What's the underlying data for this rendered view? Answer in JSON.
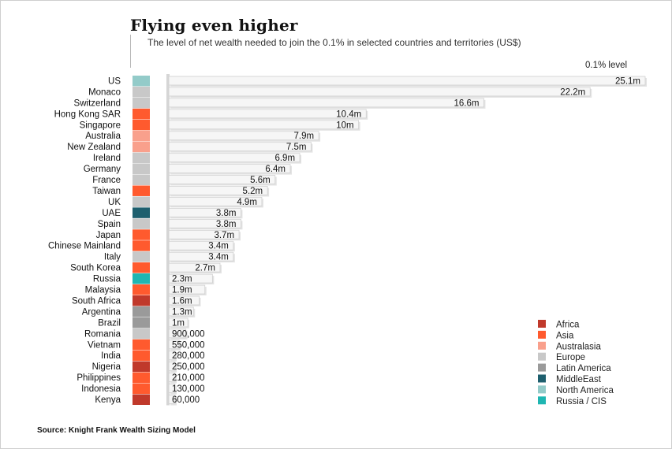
{
  "chart_data": {
    "type": "bar",
    "title": "Flying even higher",
    "subtitle": "The level of net wealth needed to join the 0.1% in selected countries and territories (US$)",
    "value_header": "0.1% level",
    "source": "Source: Knight Frank Wealth Sizing Model",
    "categories": [
      "US",
      "Monaco",
      "Switzerland",
      "Hong Kong SAR",
      "Singapore",
      "Australia",
      "New Zealand",
      "Ireland",
      "Germany",
      "France",
      "Taiwan",
      "UK",
      "UAE",
      "Spain",
      "Japan",
      "Chinese Mainland",
      "Italy",
      "South Korea",
      "Russia",
      "Malaysia",
      "South Africa",
      "Argentina",
      "Brazil",
      "Romania",
      "Vietnam",
      "India",
      "Nigeria",
      "Philippines",
      "Indonesia",
      "Kenya"
    ],
    "values": [
      25100000,
      22200000,
      16600000,
      10400000,
      10000000,
      7900000,
      7500000,
      6900000,
      6400000,
      5600000,
      5200000,
      4900000,
      3800000,
      3800000,
      3700000,
      3400000,
      3400000,
      2700000,
      2300000,
      1900000,
      1600000,
      1300000,
      1000000,
      900000,
      550000,
      280000,
      250000,
      210000,
      130000,
      60000
    ],
    "value_labels": [
      "25.1m",
      "22.2m",
      "16.6m",
      "10.4m",
      "10m",
      "7.9m",
      "7.5m",
      "6.9m",
      "6.4m",
      "5.6m",
      "5.2m",
      "4.9m",
      "3.8m",
      "3.8m",
      "3.7m",
      "3.4m",
      "3.4m",
      "2.7m",
      "2.3m",
      "1.9m",
      "1.6m",
      "1.3m",
      "1m",
      "900,000",
      "550,000",
      "280,000",
      "250,000",
      "210,000",
      "130,000",
      "60,000"
    ],
    "regions": [
      "North America",
      "Europe",
      "Europe",
      "Asia",
      "Asia",
      "Australasia",
      "Australasia",
      "Europe",
      "Europe",
      "Europe",
      "Asia",
      "Europe",
      "MiddleEast",
      "Europe",
      "Asia",
      "Asia",
      "Europe",
      "Asia",
      "Russia / CIS",
      "Asia",
      "Africa",
      "Latin America",
      "Latin America",
      "Europe",
      "Asia",
      "Asia",
      "Africa",
      "Asia",
      "Asia",
      "Africa"
    ],
    "legend": [
      {
        "name": "Africa",
        "color": "#c0392b"
      },
      {
        "name": "Asia",
        "color": "#ff5a2e"
      },
      {
        "name": "Australasia",
        "color": "#f9a08c"
      },
      {
        "name": "Europe",
        "color": "#c8c8c8"
      },
      {
        "name": "Latin America",
        "color": "#9a9a9a"
      },
      {
        "name": "MiddleEast",
        "color": "#1e5f6e"
      },
      {
        "name": "North America",
        "color": "#93cbc9"
      },
      {
        "name": "Russia / CIS",
        "color": "#1fb6b2"
      }
    ],
    "xlim": [
      0,
      25100000
    ],
    "legend_position": "bottom-right"
  }
}
